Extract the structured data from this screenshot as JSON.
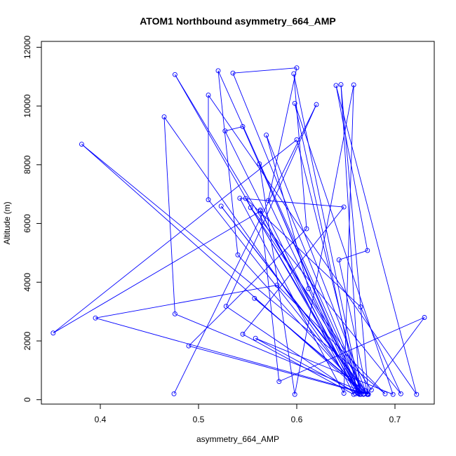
{
  "chart_data": {
    "type": "line",
    "title": "ATOM1 Northbound asymmetry_664_AMP",
    "xlabel": "asymmetry_664_AMP",
    "ylabel": "Altitude (m)",
    "xlim": [
      0.34,
      0.74
    ],
    "ylim": [
      -150,
      12200
    ],
    "x_ticks": [
      0.4,
      0.5,
      0.6,
      0.7
    ],
    "x_tick_labels": [
      "0.4",
      "0.5",
      "0.6",
      "0.7"
    ],
    "y_ticks": [
      0,
      2000,
      4000,
      6000,
      8000,
      10000,
      12000
    ],
    "y_tick_labels": [
      "0",
      "2000",
      "4000",
      "6000",
      "8000",
      "10000",
      "12000"
    ],
    "grid": false,
    "legend": "none",
    "series_color": "#0000ff",
    "series": [
      {
        "marker": "open-circle",
        "line": true,
        "points": [
          [
            0.475,
            200
          ],
          [
            0.62,
            10050
          ],
          [
            0.528,
            3180
          ],
          [
            0.66,
            200
          ],
          [
            0.527,
            9150
          ],
          [
            0.545,
            9300
          ],
          [
            0.665,
            180
          ],
          [
            0.571,
            6780
          ],
          [
            0.6,
            11300
          ],
          [
            0.535,
            11120
          ],
          [
            0.668,
            180
          ],
          [
            0.52,
            11200
          ],
          [
            0.54,
            4930
          ],
          [
            0.668,
            200
          ],
          [
            0.381,
            8700
          ],
          [
            0.69,
            200
          ],
          [
            0.58,
            3900
          ],
          [
            0.395,
            2780
          ],
          [
            0.672,
            200
          ],
          [
            0.476,
            2920
          ],
          [
            0.465,
            9630
          ],
          [
            0.663,
            220
          ],
          [
            0.563,
            6420
          ],
          [
            0.352,
            2270
          ],
          [
            0.6,
            8850
          ],
          [
            0.665,
            190
          ],
          [
            0.597,
            11100
          ],
          [
            0.61,
            5820
          ],
          [
            0.49,
            1830
          ],
          [
            0.672,
            180
          ],
          [
            0.557,
            3450
          ],
          [
            0.673,
            180
          ],
          [
            0.645,
            10730
          ],
          [
            0.664,
            180
          ],
          [
            0.558,
            2090
          ],
          [
            0.698,
            180
          ],
          [
            0.598,
            10090
          ],
          [
            0.662,
            230
          ],
          [
            0.476,
            11070
          ],
          [
            0.672,
            180
          ],
          [
            0.523,
            6590
          ],
          [
            0.67,
            310
          ],
          [
            0.569,
            9010
          ],
          [
            0.612,
            3780
          ],
          [
            0.663,
            200
          ],
          [
            0.562,
            8030
          ],
          [
            0.598,
            180
          ],
          [
            0.658,
            10720
          ],
          [
            0.648,
            220
          ],
          [
            0.542,
            6860
          ],
          [
            0.648,
            6560
          ],
          [
            0.545,
            2230
          ],
          [
            0.658,
            180
          ],
          [
            0.563,
            6460
          ],
          [
            0.582,
            620
          ],
          [
            0.73,
            2800
          ],
          [
            0.672,
            200
          ],
          [
            0.643,
            4760
          ],
          [
            0.672,
            5080
          ],
          [
            0.64,
            10700
          ],
          [
            0.722,
            180
          ],
          [
            0.51,
            10370
          ],
          [
            0.51,
            6810
          ],
          [
            0.663,
            300
          ],
          [
            0.548,
            6850
          ],
          [
            0.665,
            3160
          ],
          [
            0.706,
            200
          ],
          [
            0.553,
            6540
          ],
          [
            0.676,
            330
          ]
        ]
      }
    ]
  }
}
